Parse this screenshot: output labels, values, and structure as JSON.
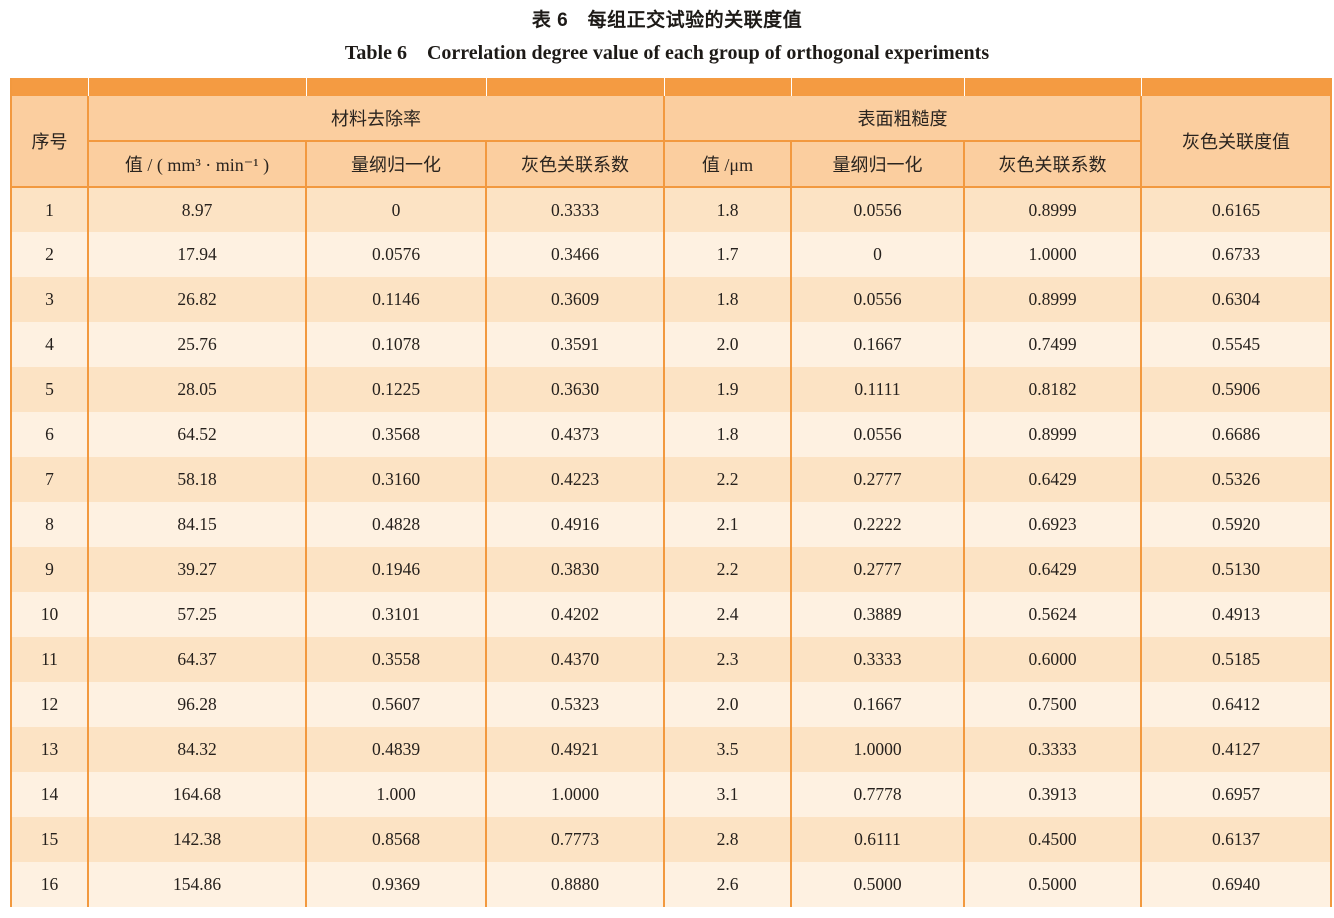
{
  "title": {
    "zh": "表 6　每组正交试验的关联度值",
    "en": "Table 6　Correlation degree value of each group of orthogonal experiments"
  },
  "table": {
    "index_header": "序号",
    "groups": [
      {
        "label": "材料去除率",
        "sub": [
          "值 / ( mm³ · min⁻¹ )",
          "量纲归一化",
          "灰色关联系数"
        ]
      },
      {
        "label": "表面粗糙度",
        "sub": [
          "值 /μm",
          "量纲归一化",
          "灰色关联系数"
        ]
      }
    ],
    "grey_degree_header": "灰色关联度值",
    "rows": [
      [
        "1",
        "8.97",
        "0",
        "0.3333",
        "1.8",
        "0.0556",
        "0.8999",
        "0.6165"
      ],
      [
        "2",
        "17.94",
        "0.0576",
        "0.3466",
        "1.7",
        "0",
        "1.0000",
        "0.6733"
      ],
      [
        "3",
        "26.82",
        "0.1146",
        "0.3609",
        "1.8",
        "0.0556",
        "0.8999",
        "0.6304"
      ],
      [
        "4",
        "25.76",
        "0.1078",
        "0.3591",
        "2.0",
        "0.1667",
        "0.7499",
        "0.5545"
      ],
      [
        "5",
        "28.05",
        "0.1225",
        "0.3630",
        "1.9",
        "0.1111",
        "0.8182",
        "0.5906"
      ],
      [
        "6",
        "64.52",
        "0.3568",
        "0.4373",
        "1.8",
        "0.0556",
        "0.8999",
        "0.6686"
      ],
      [
        "7",
        "58.18",
        "0.3160",
        "0.4223",
        "2.2",
        "0.2777",
        "0.6429",
        "0.5326"
      ],
      [
        "8",
        "84.15",
        "0.4828",
        "0.4916",
        "2.1",
        "0.2222",
        "0.6923",
        "0.5920"
      ],
      [
        "9",
        "39.27",
        "0.1946",
        "0.3830",
        "2.2",
        "0.2777",
        "0.6429",
        "0.5130"
      ],
      [
        "10",
        "57.25",
        "0.3101",
        "0.4202",
        "2.4",
        "0.3889",
        "0.5624",
        "0.4913"
      ],
      [
        "11",
        "64.37",
        "0.3558",
        "0.4370",
        "2.3",
        "0.3333",
        "0.6000",
        "0.5185"
      ],
      [
        "12",
        "96.28",
        "0.5607",
        "0.5323",
        "2.0",
        "0.1667",
        "0.7500",
        "0.6412"
      ],
      [
        "13",
        "84.32",
        "0.4839",
        "0.4921",
        "3.5",
        "1.0000",
        "0.3333",
        "0.4127"
      ],
      [
        "14",
        "164.68",
        "1.000",
        "1.0000",
        "3.1",
        "0.7778",
        "0.3913",
        "0.6957"
      ],
      [
        "15",
        "142.38",
        "0.8568",
        "0.7773",
        "2.8",
        "0.6111",
        "0.4500",
        "0.6137"
      ],
      [
        "16",
        "154.86",
        "0.9369",
        "0.8880",
        "2.6",
        "0.5000",
        "0.5000",
        "0.6940"
      ]
    ]
  },
  "colors": {
    "band": "#F49B42",
    "border": "#F2993F",
    "header_bg": "#FBCE9F",
    "row_odd": "#FCE3C4",
    "row_even": "#FEF1E1"
  }
}
